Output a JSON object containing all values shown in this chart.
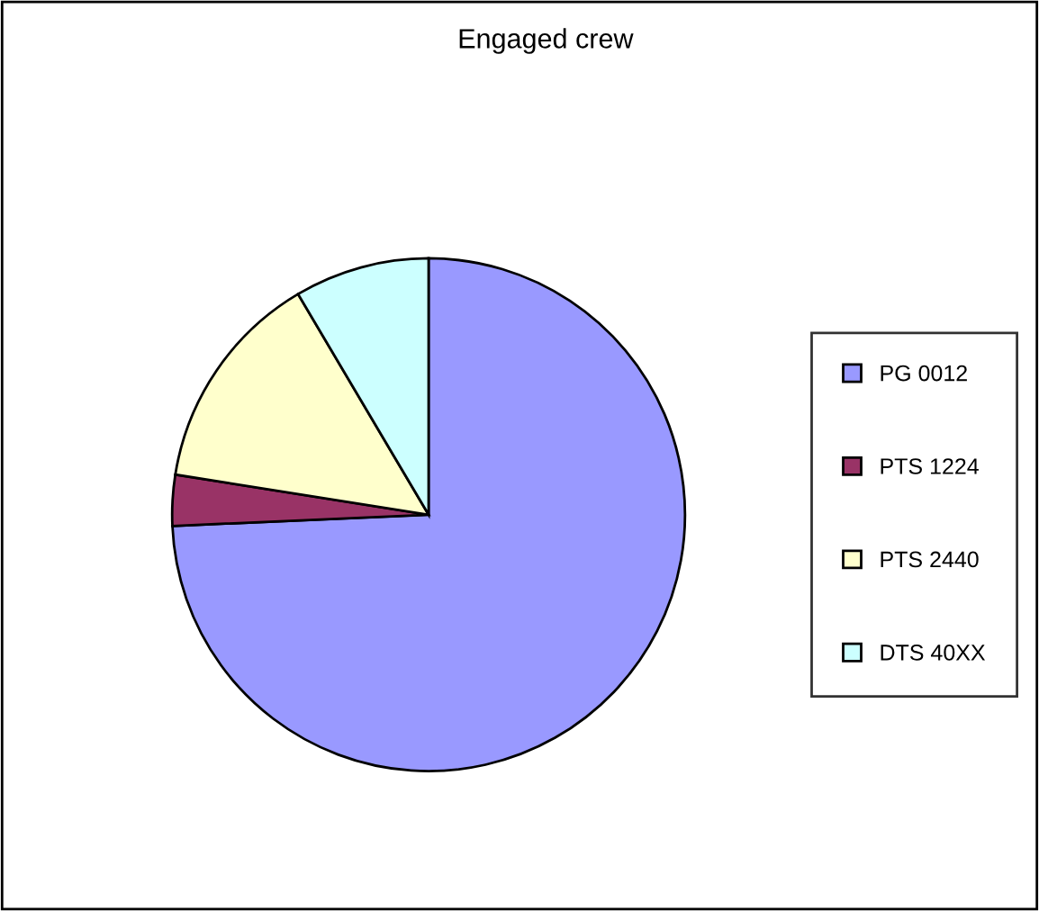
{
  "chart_data": {
    "type": "pie",
    "title": "Engaged crew",
    "categories": [
      "PG 0012",
      "PTS 1224",
      "PTS 2440",
      "DTS 40XX"
    ],
    "values": [
      74.3,
      3.2,
      14,
      8.5
    ],
    "colors": [
      "#9999ff",
      "#993366",
      "#ffffcc",
      "#ccffff"
    ],
    "legend": "right"
  }
}
